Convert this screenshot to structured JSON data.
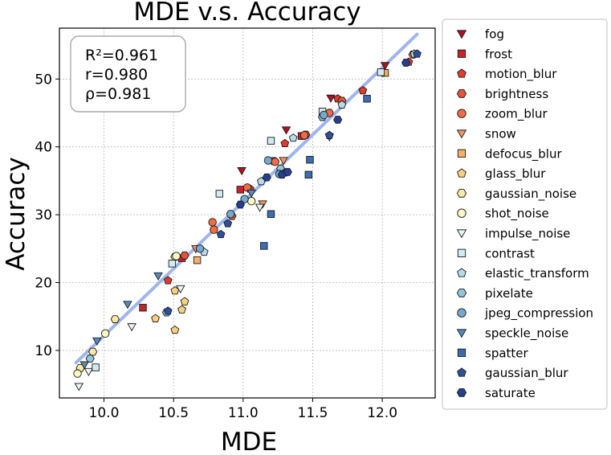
{
  "chart_data": {
    "type": "scatter",
    "title": "MDE  v.s.  Accuracy",
    "xlabel": "MDE",
    "ylabel": "Accuracy",
    "xlim": [
      9.68,
      12.38
    ],
    "ylim": [
      3.0,
      57.5
    ],
    "xticks": [
      "10.0",
      "10.5",
      "11.0",
      "11.5",
      "12.0"
    ],
    "xtick_values": [
      10.0,
      10.5,
      11.0,
      11.5,
      12.0
    ],
    "yticks": [
      "10",
      "20",
      "30",
      "40",
      "50"
    ],
    "ytick_values": [
      10,
      20,
      30,
      40,
      50
    ],
    "grid": true,
    "legend_position": "outside-right",
    "stats": {
      "r2": "R²=0.961",
      "r": "r=0.980",
      "rho": "ρ=0.981"
    },
    "fit_line": {
      "color": "#9fb5ec",
      "x": [
        9.8,
        12.25
      ],
      "y": [
        8.2,
        56.6
      ]
    },
    "series": [
      {
        "name": "fog",
        "marker": "triangle-down",
        "color": "#b30f1f",
        "points": [
          [
            10.99,
            36.5
          ],
          [
            11.31,
            42.5
          ],
          [
            11.63,
            47.2
          ],
          [
            12.02,
            52.0
          ]
        ]
      },
      {
        "name": "frost",
        "marker": "square",
        "color": "#c8232b",
        "points": [
          [
            10.28,
            16.3
          ],
          [
            10.56,
            23.6
          ],
          [
            10.98,
            33.7
          ],
          [
            11.42,
            41.6
          ]
        ]
      },
      {
        "name": "motion_blur",
        "marker": "pentagon",
        "color": "#e03b2c",
        "points": [
          [
            10.46,
            20.3
          ],
          [
            11.05,
            33.8
          ],
          [
            11.3,
            40.5
          ],
          [
            11.68,
            47.1
          ],
          [
            11.86,
            48.3
          ],
          [
            12.19,
            52.5
          ]
        ]
      },
      {
        "name": "brightness",
        "marker": "hexagon",
        "color": "#e8513a",
        "points": [
          [
            10.58,
            24.0
          ],
          [
            10.92,
            29.8
          ],
          [
            11.22,
            37.9
          ],
          [
            11.45,
            41.8
          ],
          [
            11.71,
            46.8
          ],
          [
            12.22,
            53.6
          ]
        ]
      },
      {
        "name": "zoom_blur",
        "marker": "circle",
        "color": "#f26b47",
        "points": [
          [
            10.78,
            28.9
          ],
          [
            10.79,
            27.8
          ],
          [
            11.03,
            34.0
          ],
          [
            11.23,
            37.8
          ],
          [
            11.44,
            41.7
          ],
          [
            11.62,
            45.0
          ]
        ]
      },
      {
        "name": "snow",
        "marker": "triangle-down",
        "color": "#f5935a",
        "points": [
          [
            10.66,
            25.0
          ],
          [
            11.14,
            31.6
          ],
          [
            11.29,
            38.0
          ],
          [
            11.62,
            41.5
          ]
        ]
      },
      {
        "name": "defocus_blur",
        "marker": "square",
        "color": "#f8ae65",
        "points": [
          [
            10.67,
            23.3
          ],
          [
            11.27,
            36.2
          ],
          [
            12.02,
            50.9
          ]
        ]
      },
      {
        "name": "glass_blur",
        "marker": "pentagon",
        "color": "#fbd07b",
        "points": [
          [
            10.37,
            14.7
          ],
          [
            10.51,
            13.0
          ],
          [
            10.51,
            18.8
          ],
          [
            10.56,
            16.0
          ],
          [
            10.58,
            17.2
          ]
        ]
      },
      {
        "name": "gaussian_noise",
        "marker": "hexagon",
        "color": "#fde9a3",
        "points": [
          [
            9.83,
            7.4
          ],
          [
            9.92,
            9.8
          ],
          [
            10.08,
            14.6
          ],
          [
            10.51,
            23.8
          ]
        ]
      },
      {
        "name": "shot_noise",
        "marker": "circle",
        "color": "#fbf8c3",
        "points": [
          [
            9.81,
            6.6
          ],
          [
            10.01,
            12.5
          ],
          [
            10.52,
            23.9
          ],
          [
            11.06,
            32.0
          ]
        ]
      },
      {
        "name": "impulse_noise",
        "marker": "triangle-down",
        "color": "#e8f6f4",
        "points": [
          [
            9.82,
            4.7
          ],
          [
            9.89,
            6.9
          ],
          [
            10.2,
            13.5
          ],
          [
            10.55,
            19.1
          ],
          [
            11.12,
            31.1
          ]
        ]
      },
      {
        "name": "contrast",
        "marker": "square",
        "color": "#d0ebf4",
        "points": [
          [
            9.94,
            7.5
          ],
          [
            10.49,
            22.8
          ],
          [
            10.83,
            33.1
          ],
          [
            11.2,
            40.9
          ],
          [
            11.57,
            45.2
          ],
          [
            11.99,
            51.0
          ]
        ]
      },
      {
        "name": "elastic_transform",
        "marker": "pentagon",
        "color": "#b4dcec",
        "points": [
          [
            10.72,
            24.5
          ],
          [
            11.13,
            34.9
          ],
          [
            11.36,
            41.3
          ],
          [
            11.71,
            46.2
          ],
          [
            12.23,
            53.7
          ]
        ]
      },
      {
        "name": "pixelate",
        "marker": "hexagon",
        "color": "#93c4de",
        "points": [
          [
            9.9,
            8.8
          ],
          [
            10.45,
            15.6
          ],
          [
            11.27,
            36.8
          ],
          [
            11.57,
            44.4
          ]
        ]
      },
      {
        "name": "jpeg_compression",
        "marker": "circle",
        "color": "#75a9d0",
        "points": [
          [
            10.69,
            25.0
          ],
          [
            10.91,
            30.1
          ],
          [
            11.01,
            32.3
          ],
          [
            11.26,
            36.0
          ],
          [
            11.18,
            38.0
          ],
          [
            11.58,
            44.7
          ]
        ]
      },
      {
        "name": "speckle_noise",
        "marker": "triangle-down",
        "color": "#558cc0",
        "points": [
          [
            9.86,
            7.9
          ],
          [
            9.95,
            11.4
          ],
          [
            10.17,
            16.8
          ],
          [
            10.39,
            21.0
          ],
          [
            11.06,
            33.2
          ]
        ]
      },
      {
        "name": "spatter",
        "marker": "square",
        "color": "#3b6eb0",
        "points": [
          [
            11.15,
            25.4
          ],
          [
            11.2,
            30.1
          ],
          [
            11.47,
            35.9
          ],
          [
            11.48,
            38.1
          ],
          [
            11.89,
            47.1
          ]
        ]
      },
      {
        "name": "gaussian_blur",
        "marker": "pentagon",
        "color": "#2e4f9e",
        "points": [
          [
            10.46,
            15.8
          ],
          [
            10.84,
            27.1
          ],
          [
            10.89,
            28.7
          ],
          [
            11.3,
            36.2
          ],
          [
            11.62,
            41.7
          ],
          [
            12.25,
            53.7
          ]
        ]
      },
      {
        "name": "saturate",
        "marker": "hexagon",
        "color": "#253e8f",
        "points": [
          [
            10.98,
            31.5
          ],
          [
            11.17,
            35.5
          ],
          [
            11.28,
            35.9
          ],
          [
            11.32,
            36.3
          ],
          [
            11.68,
            44.0
          ],
          [
            12.17,
            52.4
          ]
        ]
      }
    ]
  }
}
